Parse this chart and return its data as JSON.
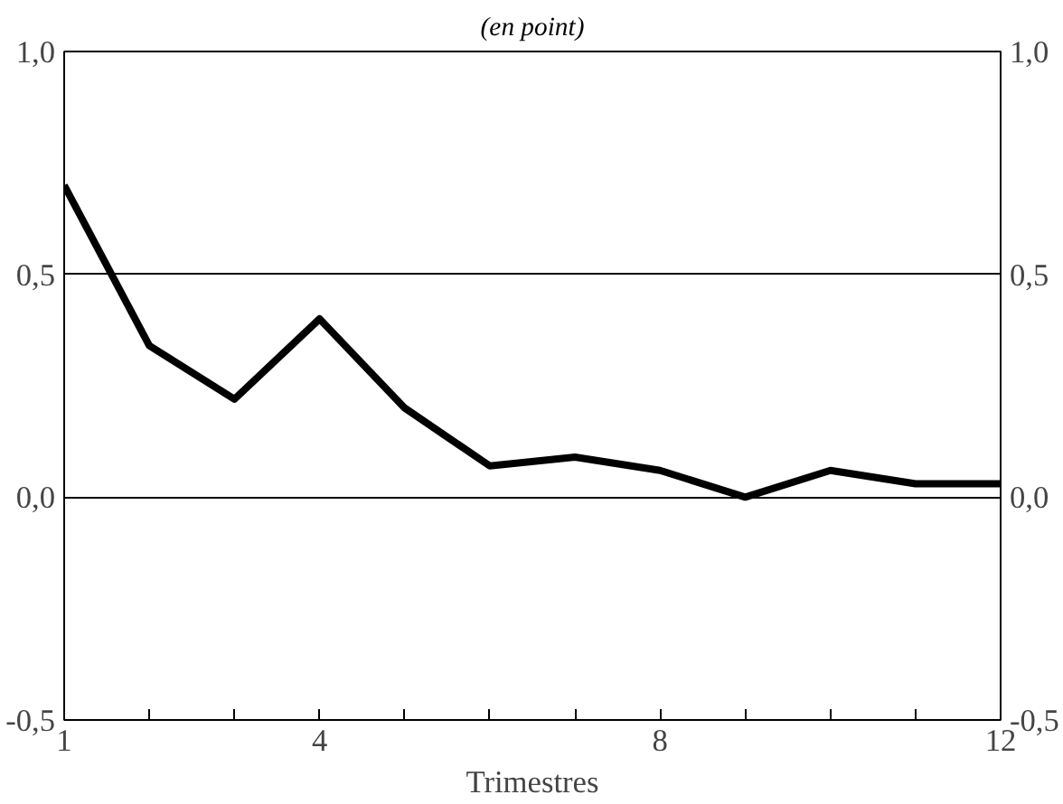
{
  "chart_data": {
    "type": "line",
    "subtitle": "(en point)",
    "xlabel": "Trimestres",
    "x": [
      1,
      2,
      3,
      4,
      5,
      6,
      7,
      8,
      9,
      10,
      11,
      12
    ],
    "series": [
      {
        "color": "#000000",
        "values": [
          0.7,
          0.34,
          0.22,
          0.4,
          0.2,
          0.07,
          0.09,
          0.06,
          0.0,
          0.06,
          0.03,
          0.03
        ]
      }
    ],
    "xlim": [
      1,
      12
    ],
    "xticks": [
      1,
      {
        "value": 2,
        "label": null
      },
      {
        "value": 3,
        "label": null
      },
      4,
      {
        "value": 5,
        "label": null
      },
      {
        "value": 6,
        "label": null
      },
      {
        "value": 7,
        "label": null
      },
      8,
      {
        "value": 9,
        "label": null
      },
      {
        "value": 10,
        "label": null
      },
      {
        "value": 11,
        "label": null
      },
      12
    ],
    "ylim": [
      -0.5,
      1.0
    ],
    "yticks": [
      {
        "value": -0.5,
        "label": "-0,5"
      },
      {
        "value": 0.0,
        "label": "0,0"
      },
      {
        "value": 0.5,
        "label": "0,5"
      },
      {
        "value": 1.0,
        "label": "1,0"
      }
    ],
    "y2lim": [
      -0.5,
      1.0
    ],
    "y2ticks": [
      {
        "value": -0.5,
        "label": "-0,5"
      },
      {
        "value": 0.0,
        "label": "0,0"
      },
      {
        "value": 0.5,
        "label": "0,5"
      },
      {
        "value": 1.0,
        "label": "1,0"
      }
    ],
    "grid": "y",
    "marker": "none",
    "line_style": "solid"
  }
}
